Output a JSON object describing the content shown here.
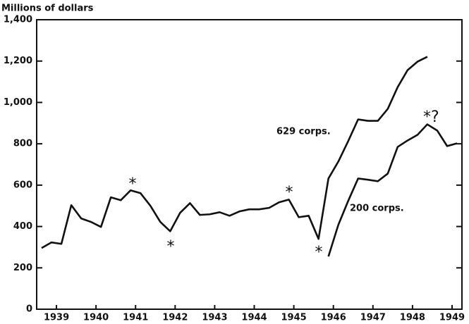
{
  "chart_data": {
    "type": "line",
    "y_label": "Millions of dollars",
    "xlim": [
      1939,
      1949.75
    ],
    "ylim": [
      0,
      1400
    ],
    "yticks": [
      0,
      200,
      400,
      600,
      800,
      {
        "value": 1000,
        "label": "1,000"
      },
      {
        "value": 1200,
        "label": "1,200"
      },
      {
        "value": 1400,
        "label": "1,400"
      }
    ],
    "xticks": [
      {
        "value": 1939.5,
        "label": "1939"
      },
      {
        "value": 1940.5,
        "label": "1940"
      },
      {
        "value": 1941.5,
        "label": "1941"
      },
      {
        "value": 1942.5,
        "label": "1942"
      },
      {
        "value": 1943.5,
        "label": "1943"
      },
      {
        "value": 1944.5,
        "label": "1944"
      },
      {
        "value": 1945.5,
        "label": "1945"
      },
      {
        "value": 1946.5,
        "label": "1946"
      },
      {
        "value": 1947.5,
        "label": "1947"
      },
      {
        "value": 1948.5,
        "label": "1948"
      },
      {
        "value": 1949.5,
        "label": "1949"
      }
    ],
    "grid": false,
    "series": [
      {
        "name": "629 corps.",
        "color": "#111111",
        "x": [
          1939.125,
          1939.375,
          1939.625,
          1939.875,
          1940.125,
          1940.375,
          1940.625,
          1940.875,
          1941.125,
          1941.375,
          1941.625,
          1941.875,
          1942.125,
          1942.375,
          1942.625,
          1942.875,
          1943.125,
          1943.375,
          1943.625,
          1943.875,
          1944.125,
          1944.375,
          1944.625,
          1944.875,
          1945.125,
          1945.375,
          1945.625,
          1945.875,
          1946.125,
          1946.375,
          1946.625,
          1946.875,
          1947.125,
          1947.375,
          1947.625,
          1947.875,
          1948.125,
          1948.375,
          1948.625,
          1948.875
        ],
        "values": [
          296,
          323,
          316,
          503,
          439,
          422,
          398,
          541,
          527,
          575,
          561,
          500,
          422,
          377,
          466,
          513,
          456,
          459,
          469,
          452,
          473,
          483,
          483,
          490,
          517,
          530,
          445,
          452,
          340,
          632,
          714,
          813,
          918,
          911,
          911,
          969,
          1074,
          1156,
          1197,
          1221
        ]
      },
      {
        "name": "200 corps.",
        "color": "#111111",
        "x": [
          1946.375,
          1946.625,
          1946.875,
          1947.125,
          1947.375,
          1947.625,
          1947.875,
          1948.125,
          1948.375,
          1948.625,
          1948.875,
          1949.125,
          1949.375,
          1949.625
        ],
        "values": [
          255,
          408,
          524,
          632,
          626,
          619,
          656,
          785,
          816,
          843,
          894,
          864,
          789,
          802
        ]
      }
    ],
    "annotations": [
      "*",
      "*",
      "*",
      "*",
      "*?"
    ]
  }
}
